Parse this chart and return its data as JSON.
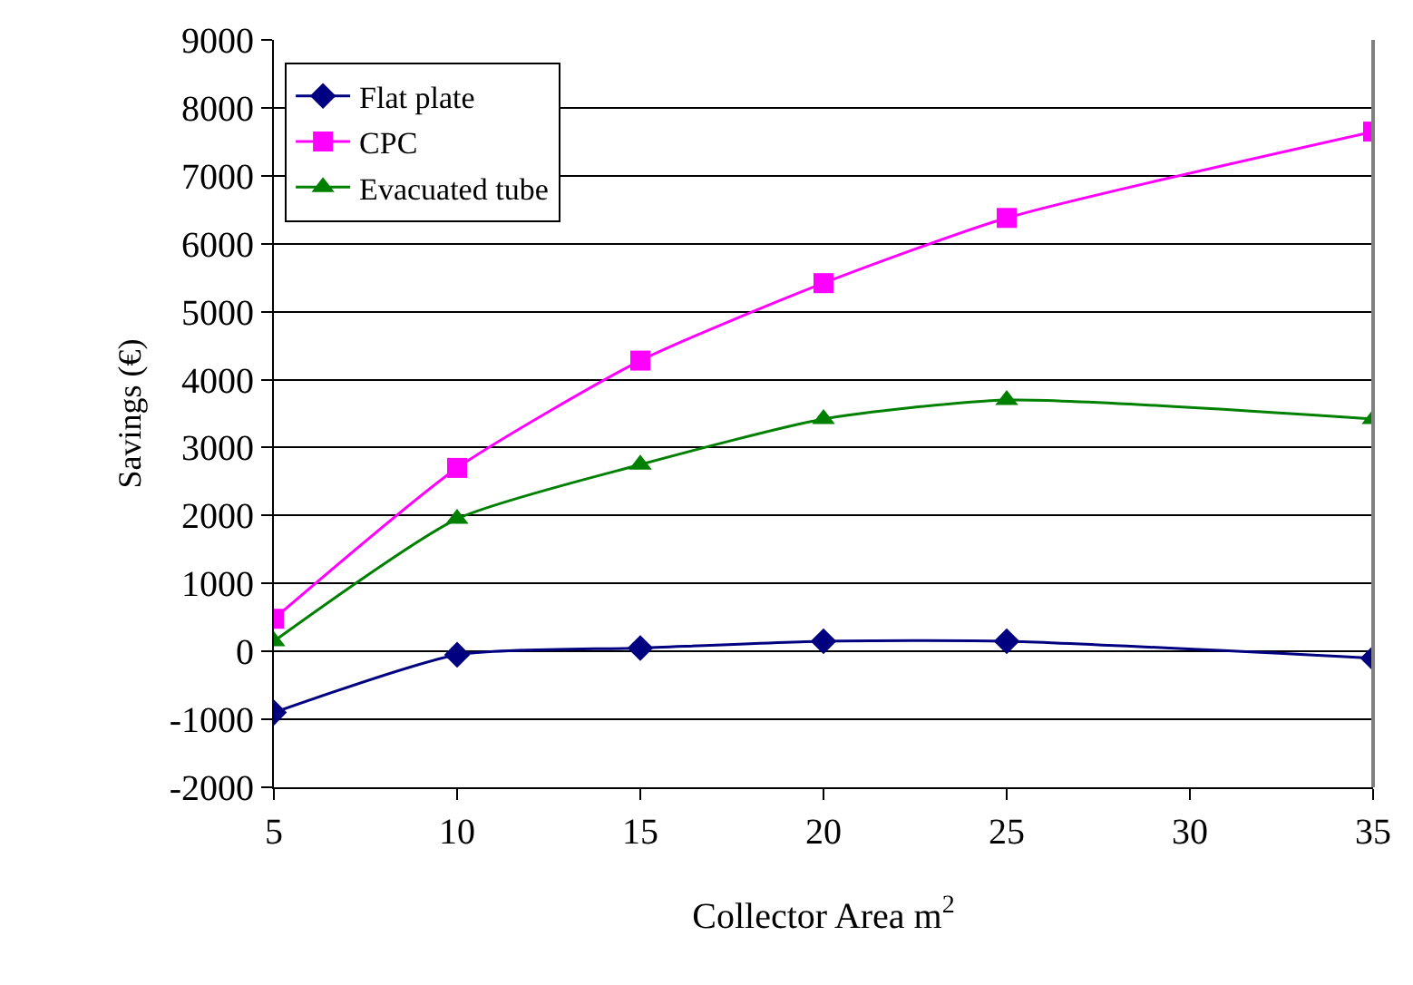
{
  "chart_data": {
    "type": "line",
    "xlabel": "Collector Area m$^{2}$",
    "ylabel": "Savings (€)",
    "x": [
      5,
      10,
      15,
      20,
      25,
      35
    ],
    "series": [
      {
        "name": "Flat plate",
        "color": "#000080",
        "marker": "diamond",
        "values": [
          -900,
          -50,
          50,
          150,
          150,
          -100
        ]
      },
      {
        "name": "CPC",
        "color": "#ff00ff",
        "marker": "square",
        "values": [
          480,
          2700,
          4280,
          5420,
          6380,
          7650
        ]
      },
      {
        "name": "Evacuated tube",
        "color": "#008000",
        "marker": "triangle",
        "values": [
          150,
          1950,
          2750,
          3420,
          3700,
          3420
        ]
      }
    ],
    "xlim": [
      5,
      35
    ],
    "xticks": [
      5,
      10,
      15,
      20,
      25,
      30,
      35
    ],
    "ylim": [
      -2000,
      9000
    ],
    "yticks": [
      -2000,
      -1000,
      0,
      1000,
      2000,
      3000,
      4000,
      5000,
      6000,
      7000,
      8000,
      9000
    ],
    "grid": "y",
    "legend": "top left",
    "line_style": "solid"
  }
}
